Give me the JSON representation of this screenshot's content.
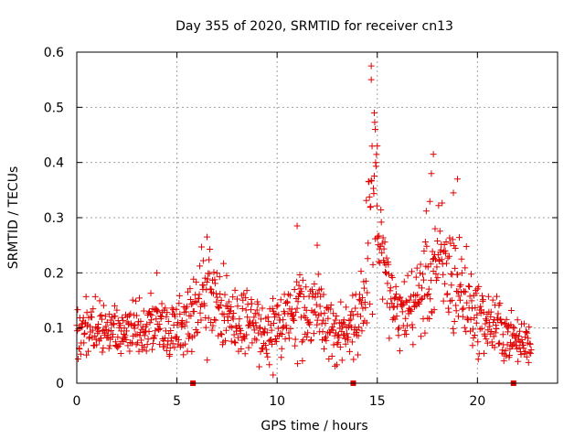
{
  "chart_data": {
    "type": "scatter",
    "title": "Day 355 of 2020, SRMTID for receiver cn13",
    "xlabel": "GPS time / hours",
    "ylabel": "SRMTID / TECUs",
    "xlim": [
      0,
      24
    ],
    "ylim": [
      0,
      0.6
    ],
    "x_ticks": [
      0,
      5,
      10,
      15,
      20
    ],
    "y_ticks": [
      0,
      0.1,
      0.2,
      0.3,
      0.4,
      0.5,
      0.6
    ],
    "x_tick_labels": [
      "0",
      "5",
      "10",
      "15",
      "20"
    ],
    "y_tick_labels": [
      "0",
      "0.1",
      "0.2",
      "0.3",
      "0.4",
      "0.5",
      "0.6"
    ],
    "grid": true,
    "marker": "+",
    "color": "#e00000",
    "series_name": "SRMTID",
    "baseline_markers": [
      {
        "x": 5.8,
        "y": 0
      },
      {
        "x": 13.8,
        "y": 0
      },
      {
        "x": 21.8,
        "y": 0
      }
    ],
    "envelope": [
      {
        "x": 0.0,
        "center": 0.095,
        "spread": 0.04
      },
      {
        "x": 1.0,
        "center": 0.1,
        "spread": 0.045
      },
      {
        "x": 2.0,
        "center": 0.095,
        "spread": 0.04
      },
      {
        "x": 3.0,
        "center": 0.095,
        "spread": 0.04
      },
      {
        "x": 4.0,
        "center": 0.11,
        "spread": 0.05
      },
      {
        "x": 5.0,
        "center": 0.1,
        "spread": 0.04
      },
      {
        "x": 6.0,
        "center": 0.14,
        "spread": 0.06
      },
      {
        "x": 6.7,
        "center": 0.16,
        "spread": 0.07
      },
      {
        "x": 7.5,
        "center": 0.12,
        "spread": 0.05
      },
      {
        "x": 8.5,
        "center": 0.11,
        "spread": 0.05
      },
      {
        "x": 9.5,
        "center": 0.09,
        "spread": 0.045
      },
      {
        "x": 10.5,
        "center": 0.11,
        "spread": 0.05
      },
      {
        "x": 11.0,
        "center": 0.15,
        "spread": 0.07
      },
      {
        "x": 12.0,
        "center": 0.13,
        "spread": 0.06
      },
      {
        "x": 13.0,
        "center": 0.09,
        "spread": 0.04
      },
      {
        "x": 14.0,
        "center": 0.1,
        "spread": 0.05
      },
      {
        "x": 14.6,
        "center": 0.25,
        "spread": 0.12
      },
      {
        "x": 14.9,
        "center": 0.35,
        "spread": 0.12
      },
      {
        "x": 15.3,
        "center": 0.2,
        "spread": 0.06
      },
      {
        "x": 16.0,
        "center": 0.12,
        "spread": 0.05
      },
      {
        "x": 17.0,
        "center": 0.15,
        "spread": 0.06
      },
      {
        "x": 17.8,
        "center": 0.22,
        "spread": 0.1
      },
      {
        "x": 18.5,
        "center": 0.2,
        "spread": 0.09
      },
      {
        "x": 19.0,
        "center": 0.18,
        "spread": 0.09
      },
      {
        "x": 20.0,
        "center": 0.12,
        "spread": 0.05
      },
      {
        "x": 21.0,
        "center": 0.1,
        "spread": 0.05
      },
      {
        "x": 22.0,
        "center": 0.075,
        "spread": 0.03
      },
      {
        "x": 22.7,
        "center": 0.075,
        "spread": 0.03
      }
    ],
    "peaks": [
      {
        "x": 14.7,
        "y": 0.575
      },
      {
        "x": 14.7,
        "y": 0.55
      },
      {
        "x": 14.85,
        "y": 0.49
      },
      {
        "x": 14.9,
        "y": 0.46
      },
      {
        "x": 15.0,
        "y": 0.43
      },
      {
        "x": 17.8,
        "y": 0.415
      },
      {
        "x": 17.7,
        "y": 0.38
      },
      {
        "x": 19.0,
        "y": 0.37
      },
      {
        "x": 18.8,
        "y": 0.345
      },
      {
        "x": 11.0,
        "y": 0.285
      },
      {
        "x": 6.5,
        "y": 0.265
      },
      {
        "x": 12.0,
        "y": 0.25
      },
      {
        "x": 4.0,
        "y": 0.2
      },
      {
        "x": 9.8,
        "y": 0.015
      }
    ]
  }
}
